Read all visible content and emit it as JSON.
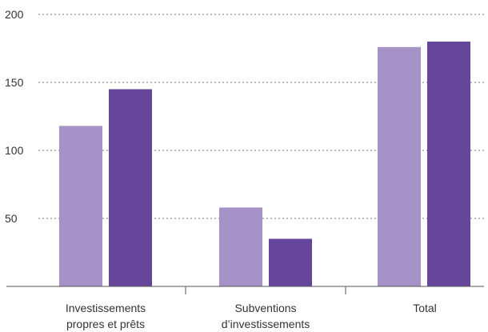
{
  "chart_data": {
    "type": "bar",
    "categories": [
      [
        "Investissements",
        "propres et prêts"
      ],
      [
        "Subventions",
        "d’investissements"
      ],
      [
        "Total"
      ]
    ],
    "series": [
      {
        "values": [
          118,
          58,
          176
        ],
        "color": "#A593C7"
      },
      {
        "values": [
          145,
          35,
          180
        ],
        "color": "#65469B"
      }
    ],
    "ylim": [
      0,
      200
    ],
    "yticks": [
      50,
      100,
      150,
      200
    ],
    "grid": true,
    "xlabel": "",
    "ylabel": "",
    "title": ""
  }
}
